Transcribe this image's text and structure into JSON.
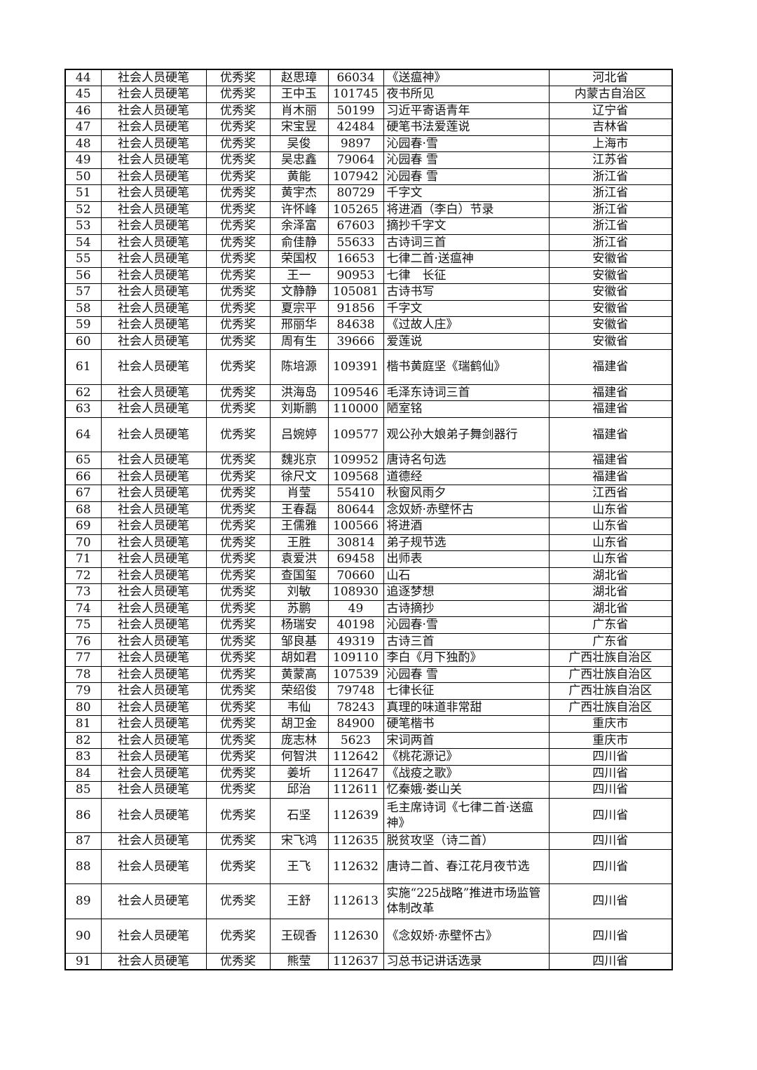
{
  "table": {
    "rows": [
      [
        "44",
        "社会人员硬笔",
        "优秀奖",
        "赵思璋",
        "66034",
        "《送瘟神》",
        "河北省"
      ],
      [
        "45",
        "社会人员硬笔",
        "优秀奖",
        "王中玉",
        "101745",
        "夜书所见",
        "内蒙古自治区"
      ],
      [
        "46",
        "社会人员硬笔",
        "优秀奖",
        "肖木丽",
        "50199",
        "习近平寄语青年",
        "辽宁省"
      ],
      [
        "47",
        "社会人员硬笔",
        "优秀奖",
        "宋宝昱",
        "42484",
        "硬笔书法爱莲说",
        "吉林省"
      ],
      [
        "48",
        "社会人员硬笔",
        "优秀奖",
        "吴俊",
        "9897",
        "沁园春·雪",
        "上海市"
      ],
      [
        "49",
        "社会人员硬笔",
        "优秀奖",
        "吴忠鑫",
        "79064",
        "沁园春 雪",
        "江苏省"
      ],
      [
        "50",
        "社会人员硬笔",
        "优秀奖",
        "黄能",
        "107942",
        "沁园春 雪",
        "浙江省"
      ],
      [
        "51",
        "社会人员硬笔",
        "优秀奖",
        "黄宇杰",
        "80729",
        "千字文",
        "浙江省"
      ],
      [
        "52",
        "社会人员硬笔",
        "优秀奖",
        "许怀峰",
        "105265",
        "将进酒（李白）节录",
        "浙江省"
      ],
      [
        "53",
        "社会人员硬笔",
        "优秀奖",
        "余泽富",
        "67603",
        "摘抄千字文",
        "浙江省"
      ],
      [
        "54",
        "社会人员硬笔",
        "优秀奖",
        "俞佳静",
        "55633",
        "古诗词三首",
        "浙江省"
      ],
      [
        "55",
        "社会人员硬笔",
        "优秀奖",
        "荣国权",
        "16653",
        "七律二首·送瘟神",
        "安徽省"
      ],
      [
        "56",
        "社会人员硬笔",
        "优秀奖",
        "王一",
        "90953",
        "七律　长征",
        "安徽省"
      ],
      [
        "57",
        "社会人员硬笔",
        "优秀奖",
        "文静静",
        "105081",
        "古诗书写",
        "安徽省"
      ],
      [
        "58",
        "社会人员硬笔",
        "优秀奖",
        "夏宗平",
        "91856",
        "千字文",
        "安徽省"
      ],
      [
        "59",
        "社会人员硬笔",
        "优秀奖",
        "邢丽华",
        "84638",
        "《过故人庄》",
        "安徽省"
      ],
      [
        "60",
        "社会人员硬笔",
        "优秀奖",
        "周有生",
        "39666",
        "爱莲说",
        "安徽省"
      ],
      [
        "61",
        "社会人员硬笔",
        "优秀奖",
        "陈培源",
        "109391",
        "楷书黄庭坚《瑞鹤仙》",
        "福建省"
      ],
      [
        "62",
        "社会人员硬笔",
        "优秀奖",
        "洪海岛",
        "109546",
        "毛泽东诗词三首",
        "福建省"
      ],
      [
        "63",
        "社会人员硬笔",
        "优秀奖",
        "刘斯鹏",
        "110000",
        "陋室铭",
        "福建省"
      ],
      [
        "64",
        "社会人员硬笔",
        "优秀奖",
        "吕婉婷",
        "109577",
        "观公孙大娘弟子舞剑器行",
        "福建省"
      ],
      [
        "65",
        "社会人员硬笔",
        "优秀奖",
        "魏兆京",
        "109952",
        "唐诗名句选",
        "福建省"
      ],
      [
        "66",
        "社会人员硬笔",
        "优秀奖",
        "徐尺文",
        "109568",
        "道德经",
        "福建省"
      ],
      [
        "67",
        "社会人员硬笔",
        "优秀奖",
        "肖莹",
        "55410",
        "秋窗风雨夕",
        "江西省"
      ],
      [
        "68",
        "社会人员硬笔",
        "优秀奖",
        "王春磊",
        "80644",
        "念奴娇·赤壁怀古",
        "山东省"
      ],
      [
        "69",
        "社会人员硬笔",
        "优秀奖",
        "王儒雅",
        "100566",
        "将进酒",
        "山东省"
      ],
      [
        "70",
        "社会人员硬笔",
        "优秀奖",
        "王胜",
        "30814",
        "弟子规节选",
        "山东省"
      ],
      [
        "71",
        "社会人员硬笔",
        "优秀奖",
        "袁爱洪",
        "69458",
        "出师表",
        "山东省"
      ],
      [
        "72",
        "社会人员硬笔",
        "优秀奖",
        "查国玺",
        "70660",
        "山石",
        "湖北省"
      ],
      [
        "73",
        "社会人员硬笔",
        "优秀奖",
        "刘敏",
        "108930",
        "追逐梦想",
        "湖北省"
      ],
      [
        "74",
        "社会人员硬笔",
        "优秀奖",
        "苏鹏",
        "49",
        "古诗摘抄",
        "湖北省"
      ],
      [
        "75",
        "社会人员硬笔",
        "优秀奖",
        "杨瑞安",
        "40198",
        "沁园春·雪",
        "广东省"
      ],
      [
        "76",
        "社会人员硬笔",
        "优秀奖",
        "邹良基",
        "49319",
        "古诗三首",
        "广东省"
      ],
      [
        "77",
        "社会人员硬笔",
        "优秀奖",
        "胡如君",
        "109110",
        "李白《月下独酌》",
        "广西壮族自治区"
      ],
      [
        "78",
        "社会人员硬笔",
        "优秀奖",
        "黄蒙高",
        "107539",
        "沁园春 雪",
        "广西壮族自治区"
      ],
      [
        "79",
        "社会人员硬笔",
        "优秀奖",
        "荣绍俊",
        "79748",
        "七律长征",
        "广西壮族自治区"
      ],
      [
        "80",
        "社会人员硬笔",
        "优秀奖",
        "韦仙",
        "78243",
        "真理的味道非常甜",
        "广西壮族自治区"
      ],
      [
        "81",
        "社会人员硬笔",
        "优秀奖",
        "胡卫金",
        "84900",
        "硬笔楷书",
        "重庆市"
      ],
      [
        "82",
        "社会人员硬笔",
        "优秀奖",
        "庞志林",
        "5623",
        "宋词两首",
        "重庆市"
      ],
      [
        "83",
        "社会人员硬笔",
        "优秀奖",
        "何智洪",
        "112642",
        "《桃花源记》",
        "四川省"
      ],
      [
        "84",
        "社会人员硬笔",
        "优秀奖",
        "姜圻",
        "112647",
        "《战疫之歌》",
        "四川省"
      ],
      [
        "85",
        "社会人员硬笔",
        "优秀奖",
        "邱治",
        "112611",
        "忆秦娥·娄山关",
        "四川省"
      ],
      [
        "86",
        "社会人员硬笔",
        "优秀奖",
        "石坚",
        "112639",
        "毛主席诗词《七律二首·送瘟神》",
        "四川省"
      ],
      [
        "87",
        "社会人员硬笔",
        "优秀奖",
        "宋飞鸿",
        "112635",
        "脱贫攻坚（诗二首）",
        "四川省"
      ],
      [
        "88",
        "社会人员硬笔",
        "优秀奖",
        "王飞",
        "112632",
        "唐诗二首、春江花月夜节选",
        "四川省"
      ],
      [
        "89",
        "社会人员硬笔",
        "优秀奖",
        "王舒",
        "112613",
        "实施“225战略”推进市场监管体制改革",
        "四川省"
      ],
      [
        "90",
        "社会人员硬笔",
        "优秀奖",
        "王砚香",
        "112630",
        "《念奴娇·赤壁怀古》",
        "四川省"
      ],
      [
        "91",
        "社会人员硬笔",
        "优秀奖",
        "熊莹",
        "112637",
        "习总书记讲话选录",
        "四川省"
      ]
    ]
  }
}
